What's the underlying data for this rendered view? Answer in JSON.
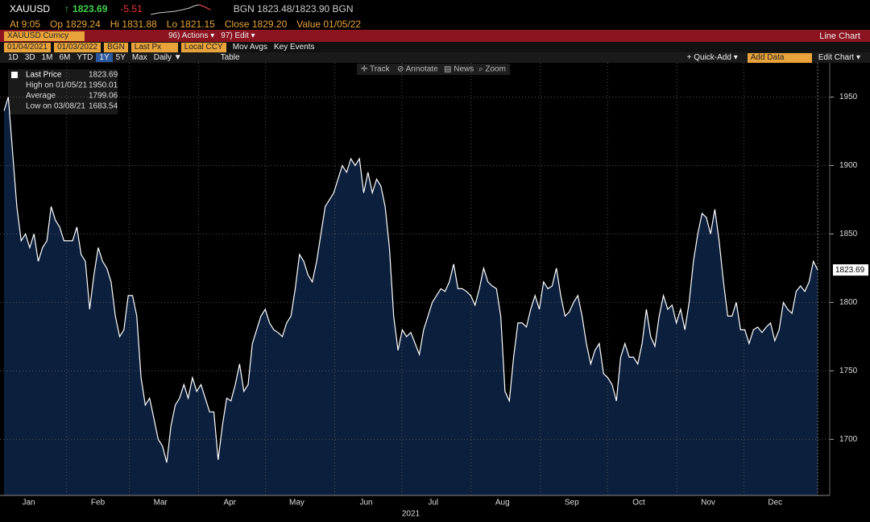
{
  "header": {
    "ticker": "XAUUSD",
    "arrow": "↑",
    "change": "-5.51",
    "quote": "BGN 1823.48/1823.90 BGN",
    "details": [
      "At 9:05",
      "Op 1829.24",
      "Hi 1831.88",
      "Lo 1821.15",
      "Close 1829.20",
      "Value 01/05/22"
    ]
  },
  "toolbar": {
    "security": "XAUUSD Curncy",
    "actions": "96) Actions ▾",
    "edit": "97) Edit ▾",
    "chart_type": "Line Chart",
    "source": "BGN",
    "field": "Last Px",
    "currency": "Local CCY",
    "mov_avgs": "Mov Avgs",
    "key_events": "Key Events",
    "periods": [
      "1D",
      "3D",
      "1M",
      "6M",
      "YTD",
      "1Y",
      "5Y",
      "Max"
    ],
    "frequency": "Daily ▼",
    "table": "Table",
    "quick_add": "+ Quick-Add ▾",
    "add_data": "Add Data",
    "edit_chart": "Edit Chart ▾",
    "tools": [
      "✛ Track",
      "⊘ Annotate",
      "▤ News",
      "⌕ Zoom"
    ]
  },
  "chart_data": {
    "type": "line",
    "xlim": [
      "01/04/2021",
      "01/03/2022"
    ],
    "xticks": [
      {
        "value": "2021-01",
        "label": "Jan"
      },
      {
        "value": "2021-02",
        "label": "Feb"
      },
      {
        "value": "2021-03",
        "label": "Mar"
      },
      {
        "value": "2021-04",
        "label": "Apr"
      },
      {
        "value": "2021-05",
        "label": "May"
      },
      {
        "value": "2021-06",
        "label": "Jun"
      },
      {
        "value": "2021-07",
        "label": "Jul"
      },
      {
        "value": "2021-08",
        "label": "Aug"
      },
      {
        "value": "2021-09",
        "label": "Sep"
      },
      {
        "value": "2021-10",
        "label": "Oct"
      },
      {
        "value": "2021-11",
        "label": "Nov"
      },
      {
        "value": "2021-12",
        "label": "Dec"
      }
    ],
    "x_group_label": "2021",
    "ylim": [
      1659,
      1975
    ],
    "yticks": [
      1700,
      1750,
      1800,
      1850,
      1900,
      1950
    ],
    "grid": true,
    "series": [
      {
        "name": "Last Price",
        "color": "#ffffff",
        "fill": "#0c1f3d",
        "values": [
          1940,
          1950,
          1910,
          1870,
          1845,
          1850,
          1840,
          1850,
          1830,
          1840,
          1845,
          1870,
          1860,
          1855,
          1845,
          1845,
          1845,
          1855,
          1835,
          1830,
          1795,
          1820,
          1840,
          1830,
          1825,
          1815,
          1790,
          1775,
          1780,
          1805,
          1805,
          1790,
          1745,
          1725,
          1730,
          1715,
          1700,
          1695,
          1683,
          1710,
          1725,
          1730,
          1740,
          1730,
          1745,
          1735,
          1740,
          1730,
          1720,
          1720,
          1685,
          1710,
          1730,
          1728,
          1740,
          1755,
          1735,
          1740,
          1770,
          1780,
          1790,
          1795,
          1785,
          1780,
          1778,
          1775,
          1785,
          1790,
          1810,
          1835,
          1830,
          1820,
          1815,
          1830,
          1850,
          1870,
          1875,
          1880,
          1890,
          1900,
          1895,
          1905,
          1900,
          1905,
          1880,
          1895,
          1880,
          1890,
          1885,
          1870,
          1840,
          1790,
          1765,
          1780,
          1775,
          1778,
          1770,
          1762,
          1780,
          1790,
          1800,
          1805,
          1810,
          1808,
          1815,
          1828,
          1810,
          1810,
          1808,
          1805,
          1798,
          1810,
          1825,
          1815,
          1812,
          1810,
          1790,
          1735,
          1728,
          1760,
          1785,
          1785,
          1782,
          1795,
          1805,
          1795,
          1815,
          1810,
          1812,
          1825,
          1805,
          1790,
          1793,
          1800,
          1805,
          1790,
          1770,
          1755,
          1765,
          1770,
          1748,
          1745,
          1740,
          1728,
          1760,
          1770,
          1760,
          1760,
          1755,
          1770,
          1795,
          1775,
          1768,
          1790,
          1805,
          1795,
          1798,
          1785,
          1795,
          1780,
          1800,
          1830,
          1850,
          1865,
          1862,
          1850,
          1868,
          1845,
          1815,
          1790,
          1790,
          1800,
          1780,
          1780,
          1770,
          1780,
          1782,
          1778,
          1782,
          1785,
          1772,
          1780,
          1800,
          1795,
          1792,
          1808,
          1812,
          1808,
          1815,
          1830,
          1823.69
        ]
      }
    ],
    "stats": [
      {
        "label": "High on 01/05/21",
        "value": "1950.01"
      },
      {
        "label": "Average",
        "value": "1799.06"
      },
      {
        "label": "Low on 03/08/21",
        "value": "1683.54"
      }
    ]
  }
}
